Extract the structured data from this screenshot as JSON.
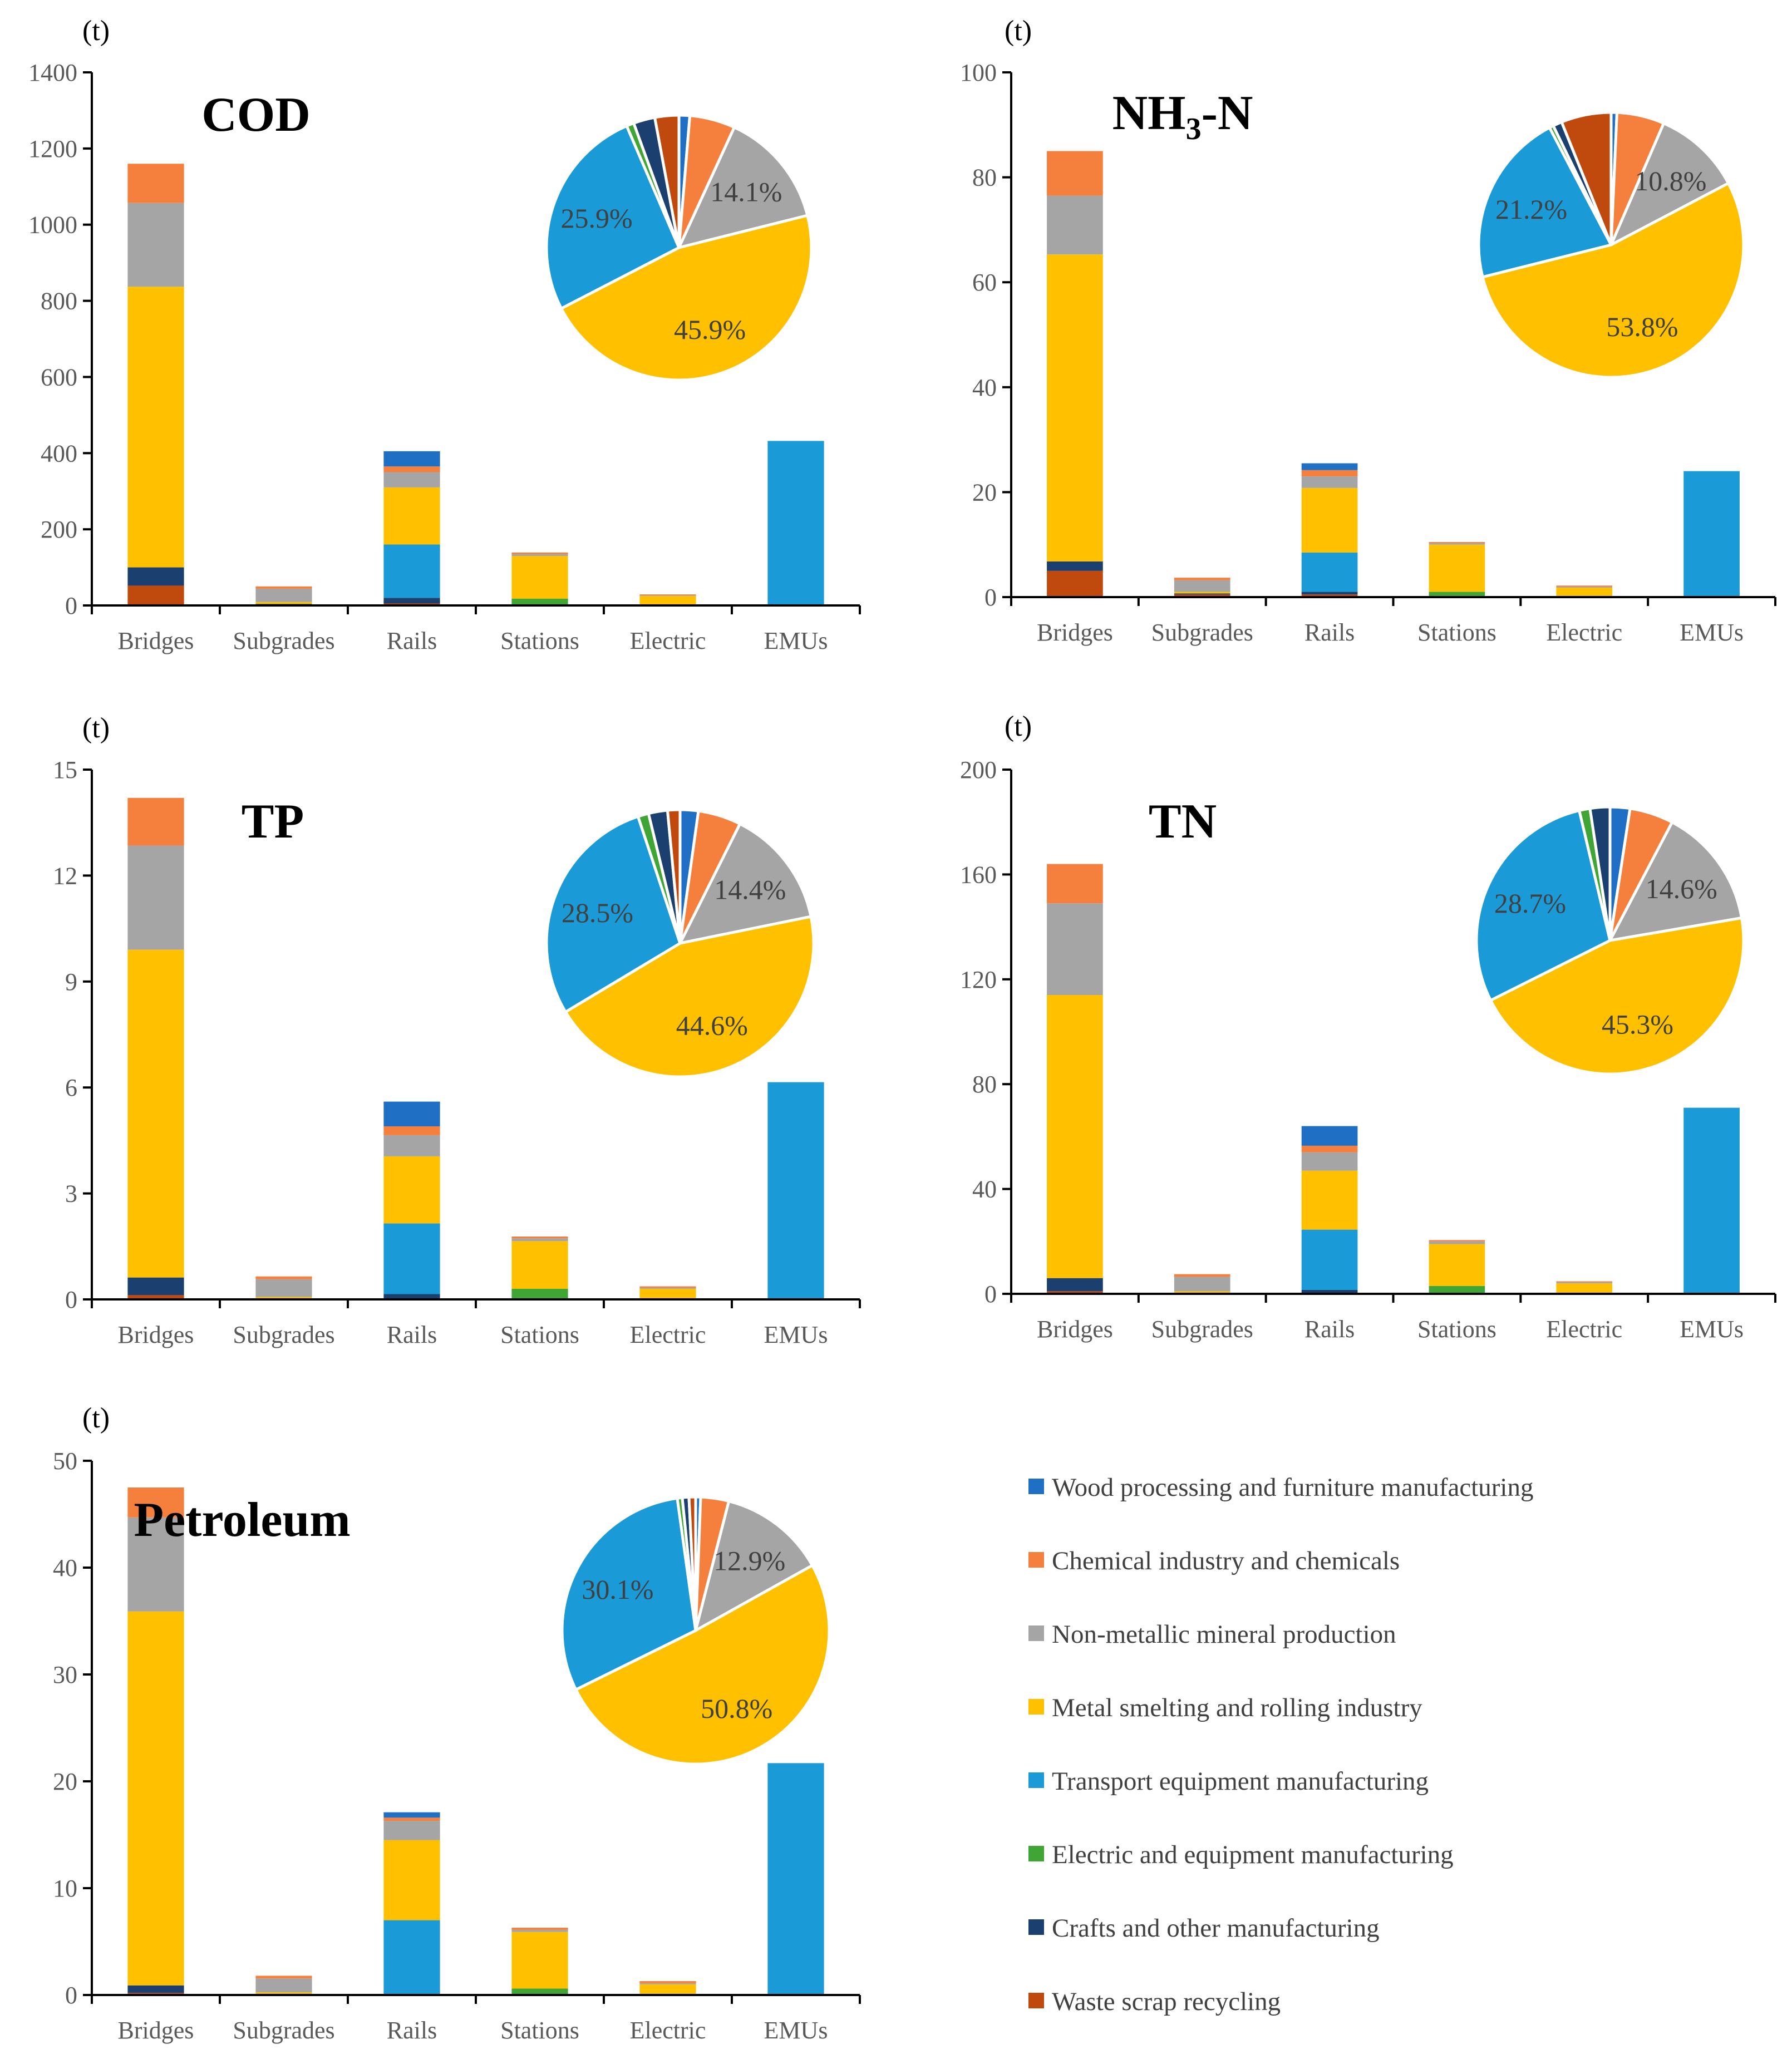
{
  "colors": {
    "wood": "#1F6FC5",
    "chemical": "#F5803E",
    "nonmetallic": "#A5A5A5",
    "metal": "#FFC000",
    "transport": "#1A9AD7",
    "electric_equip": "#3FA535",
    "crafts": "#1B3F6E",
    "waste": "#C04A0E"
  },
  "legend": {
    "items": [
      {
        "key": "wood",
        "label": "Wood processing and furniture manufacturing"
      },
      {
        "key": "chemical",
        "label": "Chemical industry and chemicals"
      },
      {
        "key": "nonmetallic",
        "label": "Non-metallic mineral production"
      },
      {
        "key": "metal",
        "label": "Metal smelting and rolling industry"
      },
      {
        "key": "transport",
        "label": "Transport equipment manufacturing"
      },
      {
        "key": "electric_equip",
        "label": "Electric and equipment manufacturing"
      },
      {
        "key": "crafts",
        "label": "Crafts and other manufacturing"
      },
      {
        "key": "waste",
        "label": "Waste scrap recycling"
      }
    ]
  },
  "chart_data": [
    {
      "id": "cod",
      "type": "bar",
      "stacked": true,
      "title": "COD",
      "unit_label": "(t)",
      "categories": [
        "Bridges",
        "Subgrades",
        "Rails",
        "Stations",
        "Electric",
        "EMUs"
      ],
      "ylim": [
        0,
        1400
      ],
      "yticks": [
        0,
        200,
        400,
        600,
        800,
        1000,
        1200,
        1400
      ],
      "ytick_labels": [
        "0",
        "200",
        "400",
        "600",
        "800",
        "1000",
        "1200",
        "1400"
      ],
      "series": [
        {
          "key": "waste",
          "values": [
            52,
            2,
            5,
            0,
            0,
            0
          ]
        },
        {
          "key": "crafts",
          "values": [
            48,
            2,
            15,
            0,
            0,
            0
          ]
        },
        {
          "key": "electric_equip",
          "values": [
            0,
            0,
            0,
            18,
            0,
            0
          ]
        },
        {
          "key": "transport",
          "values": [
            0,
            0,
            140,
            0,
            0,
            432
          ]
        },
        {
          "key": "metal",
          "values": [
            737,
            5,
            150,
            112,
            25,
            0
          ]
        },
        {
          "key": "nonmetallic",
          "values": [
            220,
            35,
            40,
            5,
            2,
            0
          ]
        },
        {
          "key": "chemical",
          "values": [
            103,
            6,
            15,
            4,
            2,
            0
          ]
        },
        {
          "key": "wood",
          "values": [
            0,
            0,
            40,
            0,
            0,
            0
          ]
        }
      ],
      "pie": {
        "slices": [
          {
            "key": "wood",
            "value": 1.3
          },
          {
            "key": "chemical",
            "value": 5.5,
            "label": ""
          },
          {
            "key": "nonmetallic",
            "value": 14.1,
            "label": "14.1%"
          },
          {
            "key": "metal",
            "value": 45.9,
            "label": "45.9%"
          },
          {
            "key": "transport",
            "value": 25.9,
            "label": "25.9%"
          },
          {
            "key": "electric_equip",
            "value": 0.9
          },
          {
            "key": "crafts",
            "value": 2.6
          },
          {
            "key": "waste",
            "value": 2.9
          }
        ]
      }
    },
    {
      "id": "nh3n",
      "type": "bar",
      "stacked": true,
      "title": "NH",
      "title_sub": "3",
      "title_tail": "-N",
      "unit_label": "(t)",
      "categories": [
        "Bridges",
        "Subgrades",
        "Rails",
        "Stations",
        "Electric",
        "EMUs"
      ],
      "ylim": [
        0,
        100
      ],
      "yticks": [
        0,
        20,
        40,
        60,
        80,
        100
      ],
      "ytick_labels": [
        "0",
        "20",
        "40",
        "60",
        "80",
        "100"
      ],
      "series": [
        {
          "key": "waste",
          "values": [
            5,
            0.5,
            0.5,
            0,
            0,
            0
          ]
        },
        {
          "key": "crafts",
          "values": [
            1.8,
            0.2,
            0.5,
            0,
            0,
            0
          ]
        },
        {
          "key": "electric_equip",
          "values": [
            0,
            0,
            0,
            1,
            0,
            0
          ]
        },
        {
          "key": "transport",
          "values": [
            0,
            0,
            7.5,
            0,
            0,
            24
          ]
        },
        {
          "key": "metal",
          "values": [
            58.5,
            0.3,
            12.3,
            9,
            1.8,
            0
          ]
        },
        {
          "key": "nonmetallic",
          "values": [
            11.2,
            2.2,
            2.2,
            0.3,
            0.2,
            0
          ]
        },
        {
          "key": "chemical",
          "values": [
            8.5,
            0.5,
            1.2,
            0.2,
            0.2,
            0
          ]
        },
        {
          "key": "wood",
          "values": [
            0,
            0,
            1.3,
            0,
            0,
            0
          ]
        }
      ],
      "pie": {
        "slices": [
          {
            "key": "wood",
            "value": 0.7
          },
          {
            "key": "chemical",
            "value": 5.8
          },
          {
            "key": "nonmetallic",
            "value": 10.8,
            "label": "10.8%"
          },
          {
            "key": "metal",
            "value": 53.8,
            "label": "53.8%"
          },
          {
            "key": "transport",
            "value": 21.2,
            "label": "21.2%"
          },
          {
            "key": "electric_equip",
            "value": 0.5
          },
          {
            "key": "crafts",
            "value": 1.1
          },
          {
            "key": "waste",
            "value": 6.1
          }
        ]
      }
    },
    {
      "id": "tp",
      "type": "bar",
      "stacked": true,
      "title": "TP",
      "unit_label": "(t)",
      "categories": [
        "Bridges",
        "Subgrades",
        "Rails",
        "Stations",
        "Electric",
        "EMUs"
      ],
      "ylim": [
        0,
        15
      ],
      "yticks": [
        0,
        3,
        6,
        9,
        12,
        15
      ],
      "ytick_labels": [
        "0",
        "3",
        "6",
        "9",
        "12",
        "15"
      ],
      "series": [
        {
          "key": "waste",
          "values": [
            0.12,
            0,
            0,
            0,
            0,
            0
          ]
        },
        {
          "key": "crafts",
          "values": [
            0.5,
            0.02,
            0.15,
            0,
            0,
            0
          ]
        },
        {
          "key": "electric_equip",
          "values": [
            0,
            0,
            0,
            0.3,
            0,
            0
          ]
        },
        {
          "key": "transport",
          "values": [
            0,
            0,
            2,
            0,
            0,
            6.15
          ]
        },
        {
          "key": "metal",
          "values": [
            9.28,
            0.05,
            1.9,
            1.35,
            0.3,
            0
          ]
        },
        {
          "key": "nonmetallic",
          "values": [
            2.95,
            0.5,
            0.6,
            0.08,
            0.03,
            0
          ]
        },
        {
          "key": "chemical",
          "values": [
            1.35,
            0.08,
            0.25,
            0.05,
            0.04,
            0
          ]
        },
        {
          "key": "wood",
          "values": [
            0,
            0,
            0.7,
            0,
            0,
            0
          ]
        }
      ],
      "pie": {
        "slices": [
          {
            "key": "wood",
            "value": 2.2
          },
          {
            "key": "chemical",
            "value": 5.2
          },
          {
            "key": "nonmetallic",
            "value": 14.4,
            "label": "14.4%"
          },
          {
            "key": "metal",
            "value": 44.6,
            "label": "44.6%"
          },
          {
            "key": "transport",
            "value": 28.5,
            "label": "28.5%"
          },
          {
            "key": "electric_equip",
            "value": 1.3
          },
          {
            "key": "crafts",
            "value": 2.3
          },
          {
            "key": "waste",
            "value": 1.5
          }
        ]
      }
    },
    {
      "id": "tn",
      "type": "bar",
      "stacked": true,
      "title": "TN",
      "unit_label": "(t)",
      "categories": [
        "Bridges",
        "Subgrades",
        "Rails",
        "Stations",
        "Electric",
        "EMUs"
      ],
      "ylim": [
        0,
        200
      ],
      "yticks": [
        0,
        40,
        80,
        120,
        160,
        200
      ],
      "ytick_labels": [
        "0",
        "40",
        "80",
        "120",
        "160",
        "200"
      ],
      "series": [
        {
          "key": "waste",
          "values": [
            1,
            0,
            0,
            0,
            0,
            0
          ]
        },
        {
          "key": "crafts",
          "values": [
            5,
            0.3,
            1.5,
            0,
            0,
            0
          ]
        },
        {
          "key": "electric_equip",
          "values": [
            0,
            0,
            0,
            3,
            0,
            0
          ]
        },
        {
          "key": "transport",
          "values": [
            0,
            0,
            23,
            0,
            0,
            71
          ]
        },
        {
          "key": "metal",
          "values": [
            108,
            0.7,
            22.5,
            16,
            4,
            0
          ]
        },
        {
          "key": "nonmetallic",
          "values": [
            35,
            5.5,
            7,
            1,
            0.5,
            0
          ]
        },
        {
          "key": "chemical",
          "values": [
            15,
            1,
            2.5,
            0.5,
            0.3,
            0
          ]
        },
        {
          "key": "wood",
          "values": [
            0,
            0,
            7.5,
            0,
            0,
            0
          ]
        }
      ],
      "pie": {
        "slices": [
          {
            "key": "wood",
            "value": 2.4
          },
          {
            "key": "chemical",
            "value": 5.3
          },
          {
            "key": "nonmetallic",
            "value": 14.6,
            "label": "14.6%"
          },
          {
            "key": "metal",
            "value": 45.3,
            "label": "45.3%"
          },
          {
            "key": "transport",
            "value": 28.7,
            "label": "28.7%"
          },
          {
            "key": "electric_equip",
            "value": 1.3
          },
          {
            "key": "crafts",
            "value": 2.4
          },
          {
            "key": "waste",
            "value": 0
          }
        ]
      }
    },
    {
      "id": "petroleum",
      "type": "bar",
      "stacked": true,
      "title": "Petroleum",
      "unit_label": "(t)",
      "categories": [
        "Bridges",
        "Subgrades",
        "Rails",
        "Stations",
        "Electric",
        "EMUs"
      ],
      "ylim": [
        0,
        50
      ],
      "yticks": [
        0,
        10,
        20,
        30,
        40,
        50
      ],
      "ytick_labels": [
        "0",
        "10",
        "20",
        "30",
        "40",
        "50"
      ],
      "series": [
        {
          "key": "waste",
          "values": [
            0.2,
            0,
            0,
            0,
            0,
            0
          ]
        },
        {
          "key": "crafts",
          "values": [
            0.7,
            0.05,
            0.1,
            0,
            0,
            0
          ]
        },
        {
          "key": "electric_equip",
          "values": [
            0,
            0,
            0,
            0.6,
            0,
            0
          ]
        },
        {
          "key": "transport",
          "values": [
            0,
            0,
            6.9,
            0,
            0,
            21.7
          ]
        },
        {
          "key": "metal",
          "values": [
            35,
            0.2,
            7.5,
            5.3,
            1,
            0
          ]
        },
        {
          "key": "nonmetallic",
          "values": [
            8.8,
            1.3,
            1.8,
            0.2,
            0.1,
            0
          ]
        },
        {
          "key": "chemical",
          "values": [
            2.8,
            0.25,
            0.3,
            0.2,
            0.2,
            0
          ]
        },
        {
          "key": "wood",
          "values": [
            0,
            0,
            0.5,
            0,
            0,
            0
          ]
        }
      ],
      "pie": {
        "slices": [
          {
            "key": "wood",
            "value": 0.6
          },
          {
            "key": "chemical",
            "value": 3.4
          },
          {
            "key": "nonmetallic",
            "value": 12.9,
            "label": "12.9%"
          },
          {
            "key": "metal",
            "value": 50.8,
            "label": "50.8%"
          },
          {
            "key": "transport",
            "value": 30.1,
            "label": "30.1%"
          },
          {
            "key": "electric_equip",
            "value": 0.6
          },
          {
            "key": "crafts",
            "value": 0.8
          },
          {
            "key": "waste",
            "value": 0.8
          }
        ]
      }
    }
  ]
}
